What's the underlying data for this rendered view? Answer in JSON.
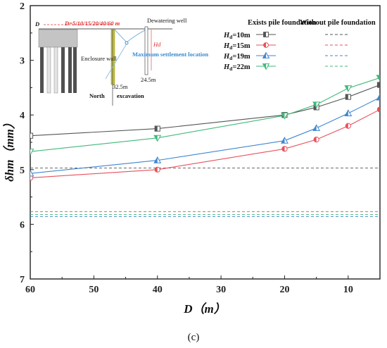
{
  "chart_data": {
    "type": "line",
    "xlabel": "D（m）",
    "ylabel": "δhm（mm）",
    "xlim": [
      60,
      5
    ],
    "ylim": [
      2,
      7
    ],
    "y_inverted": true,
    "x_ticks": [
      "60",
      "50",
      "40",
      "30",
      "20",
      "10"
    ],
    "y_ticks": [
      "2",
      "3",
      "4",
      "5",
      "6",
      "7"
    ],
    "caption": "(c)",
    "legend": {
      "col1_header": "Exists pile foundation",
      "col2_header": "Without pile foundation",
      "placement": "top-right"
    },
    "series": [
      {
        "name": "Hd=10m",
        "prefix": "H",
        "sub": "d",
        "suffix": "=10m",
        "color": "#555555",
        "marker": "square",
        "x": [
          60,
          40,
          20,
          15,
          10,
          5
        ],
        "values": [
          4.38,
          4.25,
          4.0,
          3.86,
          3.67,
          3.45
        ],
        "no_pile": 4.97
      },
      {
        "name": "Hd=15m",
        "prefix": "H",
        "sub": "d",
        "suffix": "=15m",
        "color": "#e8505b",
        "marker": "circle-half",
        "x": [
          60,
          40,
          20,
          15,
          10,
          5
        ],
        "values": [
          5.15,
          5.0,
          4.62,
          4.45,
          4.2,
          3.9
        ],
        "no_pile": 5.77
      },
      {
        "name": "Hd=19m",
        "prefix": "H",
        "sub": "d",
        "suffix": "=19m",
        "color": "#3f86d0",
        "marker": "triangle-up",
        "x": [
          60,
          40,
          20,
          15,
          10,
          5
        ],
        "values": [
          5.07,
          4.83,
          4.47,
          4.24,
          3.97,
          3.68
        ],
        "no_pile": 5.86
      },
      {
        "name": "Hd=22m",
        "prefix": "H",
        "sub": "d",
        "suffix": "=22m",
        "color": "#3fb97a",
        "marker": "triangle-down",
        "x": [
          60,
          40,
          20,
          15,
          10,
          5
        ],
        "values": [
          4.67,
          4.42,
          4.01,
          3.81,
          3.51,
          3.32
        ],
        "no_pile": 5.82
      }
    ],
    "inset": {
      "d_label": "D",
      "d_values": "D=5/10/15/20/40/60 m",
      "dewatering_well": "Dewatering well",
      "enclosure_wall": "Enclosure wall",
      "max_settlement": "Maximum settlement location",
      "north": "North",
      "excavation": "excavation",
      "depth_wall": "32.5m",
      "depth_well": "24.5m",
      "hd": "Hd"
    }
  }
}
